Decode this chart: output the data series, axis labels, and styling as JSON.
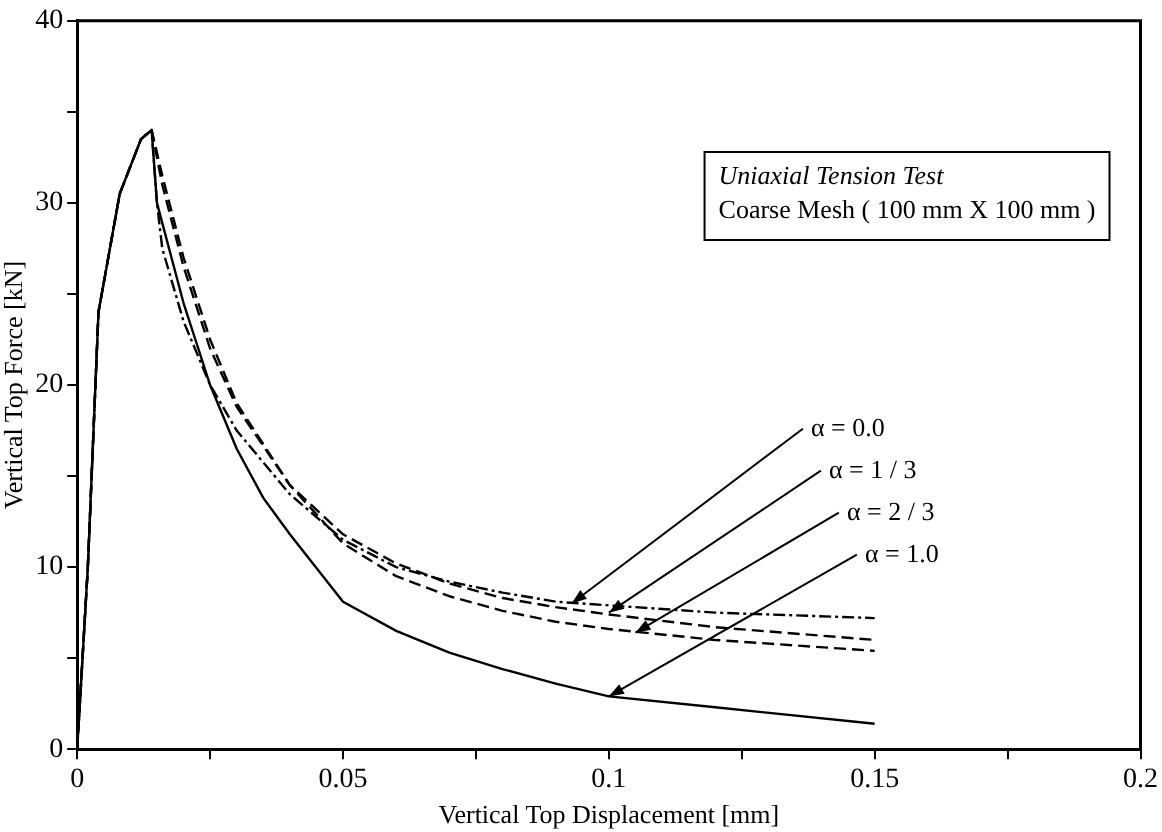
{
  "chart_data": {
    "type": "line",
    "xlabel": "Vertical Top Displacement [mm]",
    "ylabel": "Vertical Top Force [kN]",
    "xlim": [
      0,
      0.2
    ],
    "xticks": [
      0,
      {
        "value": 0.025,
        "label": null
      },
      0.05,
      {
        "value": 0.075,
        "label": null
      },
      0.1,
      {
        "value": 0.125,
        "label": null
      },
      0.15,
      {
        "value": 0.175,
        "label": null
      },
      0.2
    ],
    "ylim": [
      0,
      40
    ],
    "yticks": [
      0,
      {
        "value": 5,
        "label": null
      },
      10,
      {
        "value": 15,
        "label": null
      },
      20,
      {
        "value": 25,
        "label": null
      },
      30,
      {
        "value": 35,
        "label": null
      },
      40
    ],
    "grid": false,
    "legend": false,
    "marker": "none",
    "series": [
      {
        "color": "#000000",
        "line_style": "dotted",
        "x": [
          0,
          0.002,
          0.004,
          0.008,
          0.012,
          0.014,
          0.015,
          0.016,
          0.02,
          0.025,
          0.03,
          0.04,
          0.05,
          0.06,
          0.07,
          0.08,
          0.09,
          0.1,
          0.12,
          0.15
        ],
        "values": [
          0,
          10,
          24,
          30.5,
          33.5,
          34,
          30,
          27.5,
          23.5,
          20,
          17.5,
          14,
          11.5,
          10,
          9.2,
          8.6,
          8.1,
          7.9,
          7.5,
          7.2
        ]
      },
      {
        "color": "#000000",
        "line_style": "dashed",
        "x": [
          0,
          0.002,
          0.004,
          0.008,
          0.012,
          0.014,
          0.016,
          0.02,
          0.025,
          0.03,
          0.04,
          0.05,
          0.06,
          0.07,
          0.08,
          0.09,
          0.1,
          0.12,
          0.15
        ],
        "values": [
          0,
          10,
          24,
          30.5,
          33.5,
          34,
          31,
          26.5,
          22,
          18.8,
          14.5,
          11.8,
          10.2,
          9.1,
          8.3,
          7.8,
          7.4,
          6.7,
          6.0
        ]
      },
      {
        "color": "#000000",
        "line_style": "dashed",
        "x": [
          0,
          0.002,
          0.004,
          0.008,
          0.012,
          0.014,
          0.016,
          0.02,
          0.025,
          0.03,
          0.04,
          0.05,
          0.06,
          0.07,
          0.08,
          0.09,
          0.1,
          0.12,
          0.15
        ],
        "values": [
          0,
          10,
          24,
          30.5,
          33.5,
          34,
          31.5,
          27,
          22.5,
          19,
          14.5,
          11.3,
          9.5,
          8.4,
          7.6,
          7.0,
          6.6,
          6.0,
          5.4
        ]
      },
      {
        "color": "#000000",
        "line_style": "solid",
        "x": [
          0,
          0.002,
          0.004,
          0.008,
          0.012,
          0.014,
          0.015,
          0.02,
          0.025,
          0.03,
          0.035,
          0.04,
          0.05,
          0.06,
          0.07,
          0.08,
          0.09,
          0.1,
          0.12,
          0.15
        ],
        "values": [
          0,
          10,
          24,
          30.5,
          33.5,
          34,
          30,
          24.5,
          20,
          16.5,
          13.8,
          11.8,
          8.1,
          6.5,
          5.3,
          4.4,
          3.6,
          2.9,
          2.3,
          1.4
        ]
      }
    ],
    "annotations": [
      "Uniaxial Tension Test",
      "Coarse Mesh ( 100 mm X 100 mm )",
      {
        "text": "α = 0.0",
        "x": 0.093,
        "y": 8.0
      },
      {
        "text": "α = 1 / 3",
        "x": 0.1,
        "y": 7.5
      },
      {
        "text": "α = 2 / 3",
        "x": 0.105,
        "y": 6.4
      },
      {
        "text": "α = 1.0",
        "x": 0.1,
        "y": 2.9
      }
    ]
  }
}
